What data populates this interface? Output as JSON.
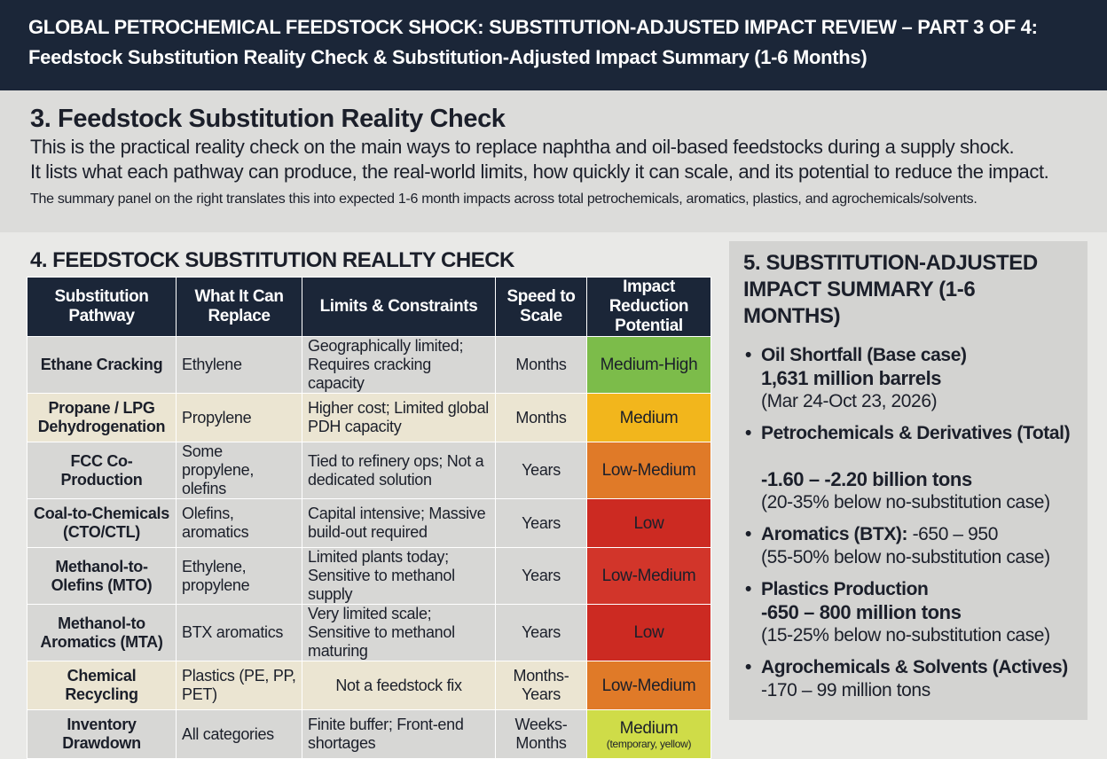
{
  "banner": {
    "line1": "GLOBAL PETROCHEMICAL FEEDSTOCK SHOCK: SUBSTITUTION-ADJUSTED IMPACT REVIEW – PART 3 OF 4:",
    "line2": "Feedstock Substitution Reality Check & Substitution-Adjusted Impact Summary (1-6 Months)"
  },
  "intro": {
    "heading": "3. Feedstock Substitution Reality Check",
    "line1": "This is the practical reality check on the main ways to replace naphtha and oil-based feedstocks during a supply shock.",
    "line2": "It lists what each pathway can produce, the real-world limits, how quickly it can scale, and its potential to reduce the impact.",
    "line3": "The summary panel on the right translates this into expected 1-6 month impacts across total petrochemicals, aromatics, plastics, and agrochemicals/solvents."
  },
  "table": {
    "title": "4. FEEDSTOCK SUBSTITUTION REALLTY CHECK",
    "headers": [
      "Substitution Pathway",
      "What It Can Replace",
      "Limits & Constraints",
      "Speed to Scale",
      "Impact Reduction Potential"
    ],
    "rows": [
      {
        "pathway": "Ethane Cracking",
        "replace": "Ethylene",
        "limits": "Geographically limited; Requires cracking capacity",
        "speed": "Months",
        "impact": "Medium-High",
        "impact_sub": "",
        "impact_color": "#7cbc4a",
        "row_tone": "grey"
      },
      {
        "pathway": "Propane / LPG Dehydrogenation",
        "replace": "Propylene",
        "limits": "Higher cost; Limited global PDH capacity",
        "speed": "Months",
        "impact": "Medium",
        "impact_sub": "",
        "impact_color": "#f2b61c",
        "row_tone": "beige"
      },
      {
        "pathway": "FCC Co-Production",
        "replace": "Some propylene, olefins",
        "limits": "Tied to refinery ops; Not a dedicated solution",
        "speed": "Years",
        "impact": "Low-Medium",
        "impact_sub": "",
        "impact_color": "#e07a28",
        "row_tone": "grey"
      },
      {
        "pathway": "Coal-to-Chemicals (CTO/CTL)",
        "replace": "Olefins, aromatics",
        "limits": "Capital intensive; Massive build-out required",
        "speed": "Years",
        "impact": "Low",
        "impact_sub": "",
        "impact_color": "#cc2a22",
        "row_tone": "grey"
      },
      {
        "pathway": "Methanol-to-Olefins (MTO)",
        "replace": "Ethylene, propylene",
        "limits": "Limited plants today; Sensitive to methanol supply",
        "speed": "Years",
        "impact": "Low-Medium",
        "impact_sub": "",
        "impact_color": "#d2352a",
        "row_tone": "grey"
      },
      {
        "pathway": "Methanol-to Aromatics (MTA)",
        "replace": "BTX aromatics",
        "limits": "Very limited scale; Sensitive to methanol maturing",
        "speed": "Years",
        "impact": "Low",
        "impact_sub": "",
        "impact_color": "#cc2a22",
        "row_tone": "grey"
      },
      {
        "pathway": "Chemical Recycling",
        "replace": "Plastics (PE, PP, PET)",
        "limits": "Not a feedstock fix",
        "speed": "Months-Years",
        "impact": "Low-Medium",
        "impact_sub": "",
        "impact_color": "#e07a28",
        "row_tone": "beige"
      },
      {
        "pathway": "Inventory Drawdown",
        "replace": "All categories",
        "limits": "Finite buffer; Front-end shortages",
        "speed": "Weeks-Months",
        "impact": "Medium",
        "impact_sub": "(temporary, yellow)",
        "impact_color": "#cfdc48",
        "row_tone": "grey"
      }
    ]
  },
  "summary": {
    "title_line1": "5. SUBSTITUTION-ADJUSTED",
    "title_line2": "IMPACT SUMMARY (1-6 MONTHS)",
    "oil_label": "Oil Shortfall (Base case)",
    "oil_value": "1,631 million barrels",
    "oil_dates": "(Mar 24-Oct 23, 2026)",
    "petro_label": "Petrochemicals & Derivatives (Total)",
    "petro_value": "-1.60 – -2.20 billion tons",
    "petro_note": "(20-35% below no-substitution case)",
    "arom_label": "Aromatics (BTX):",
    "arom_value": "-650 – 950",
    "arom_note": "(55-50% below no-substitution case)",
    "plastics_label": "Plastics Production",
    "plastics_value": "-650 – 800 million tons",
    "plastics_note": "(15-25% below no-substitution case)",
    "agro_label": "Agrochemicals & Solvents (Actives)",
    "agro_value": "-170 – 99 million tons"
  }
}
